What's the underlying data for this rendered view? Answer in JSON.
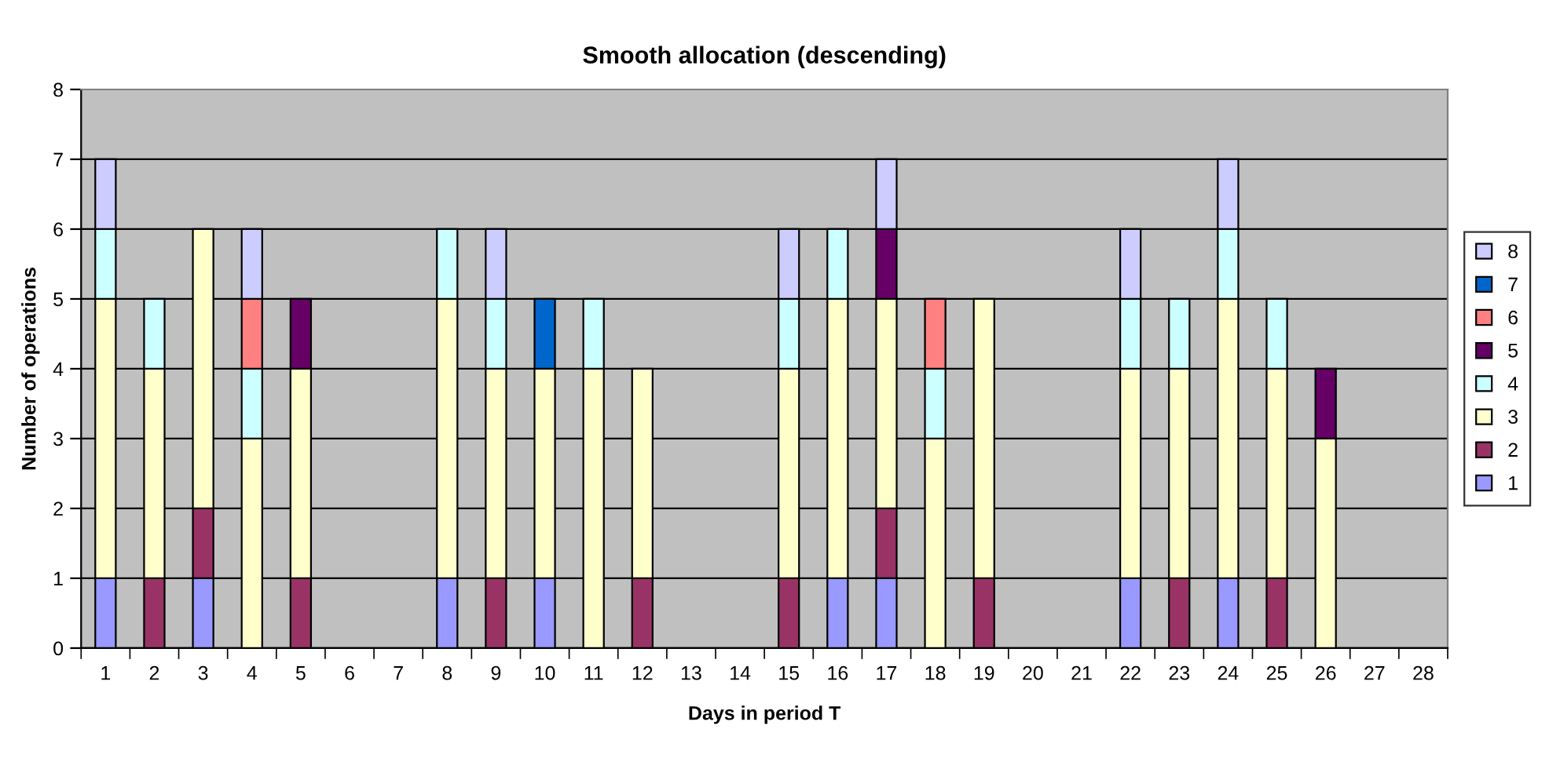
{
  "chart_data": {
    "type": "bar",
    "title": "Smooth allocation (descending)",
    "xlabel": "Days in period T",
    "ylabel": "Number of operations",
    "categories": [
      "1",
      "2",
      "3",
      "4",
      "5",
      "6",
      "7",
      "8",
      "9",
      "10",
      "11",
      "12",
      "13",
      "14",
      "15",
      "16",
      "17",
      "18",
      "19",
      "20",
      "21",
      "22",
      "23",
      "24",
      "25",
      "26",
      "27",
      "28"
    ],
    "stacked": true,
    "ylim": [
      0,
      8
    ],
    "yticks": [
      0,
      1,
      2,
      3,
      4,
      5,
      6,
      7,
      8
    ],
    "grid": "y",
    "legend": "right",
    "series": [
      {
        "name": "1",
        "color": "#9999ff",
        "values": [
          1,
          null,
          1,
          null,
          null,
          null,
          null,
          1,
          null,
          1,
          null,
          null,
          null,
          null,
          null,
          1,
          1,
          null,
          null,
          null,
          null,
          1,
          null,
          1,
          null,
          null,
          null,
          null
        ]
      },
      {
        "name": "2",
        "color": "#993366",
        "values": [
          null,
          1,
          1,
          null,
          1,
          null,
          null,
          null,
          1,
          null,
          null,
          1,
          null,
          null,
          1,
          null,
          1,
          null,
          1,
          null,
          null,
          null,
          1,
          null,
          1,
          null,
          null,
          null
        ]
      },
      {
        "name": "3",
        "color": "#ffffcc",
        "values": [
          4,
          3,
          4,
          3,
          3,
          null,
          null,
          4,
          3,
          3,
          4,
          3,
          null,
          null,
          3,
          4,
          3,
          3,
          4,
          null,
          null,
          3,
          3,
          4,
          3,
          3,
          null,
          null
        ]
      },
      {
        "name": "4",
        "color": "#ccffff",
        "values": [
          1,
          1,
          null,
          1,
          null,
          null,
          null,
          1,
          1,
          null,
          1,
          null,
          null,
          null,
          1,
          1,
          null,
          1,
          null,
          null,
          null,
          1,
          1,
          1,
          1,
          null,
          null,
          null
        ]
      },
      {
        "name": "5",
        "color": "#660066",
        "values": [
          null,
          null,
          null,
          null,
          1,
          null,
          null,
          null,
          null,
          null,
          null,
          null,
          null,
          null,
          null,
          null,
          1,
          null,
          null,
          null,
          null,
          null,
          null,
          null,
          null,
          1,
          null,
          null
        ]
      },
      {
        "name": "6",
        "color": "#ff8080",
        "values": [
          null,
          null,
          null,
          1,
          null,
          null,
          null,
          null,
          null,
          null,
          null,
          null,
          null,
          null,
          null,
          null,
          null,
          1,
          null,
          null,
          null,
          null,
          null,
          null,
          null,
          null,
          null,
          null
        ]
      },
      {
        "name": "7",
        "color": "#0066cc",
        "values": [
          null,
          null,
          null,
          null,
          null,
          null,
          null,
          null,
          null,
          1,
          null,
          null,
          null,
          null,
          null,
          null,
          null,
          null,
          null,
          null,
          null,
          null,
          null,
          null,
          null,
          null,
          null,
          null
        ]
      },
      {
        "name": "8",
        "color": "#ccccff",
        "values": [
          1,
          null,
          null,
          1,
          null,
          null,
          null,
          null,
          1,
          null,
          null,
          null,
          null,
          null,
          1,
          null,
          1,
          null,
          null,
          null,
          null,
          1,
          null,
          1,
          null,
          null,
          null,
          null
        ]
      }
    ]
  }
}
